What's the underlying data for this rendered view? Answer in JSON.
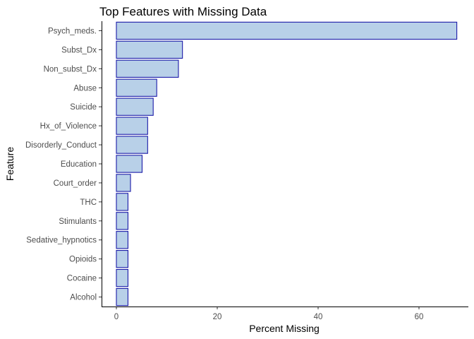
{
  "chart_data": {
    "type": "bar",
    "orientation": "horizontal",
    "title": "Top Features with Missing Data",
    "xlabel": "Percent Missing",
    "ylabel": "Feature",
    "xlim": [
      0,
      70
    ],
    "xticks": [
      0,
      20,
      40,
      60
    ],
    "categories": [
      "Psych_meds.",
      "Subst_Dx",
      "Non_subst_Dx",
      "Abuse",
      "Suicide",
      "Hx_of_Violence",
      "Disorderly_Conduct",
      "Education",
      "Court_order",
      "THC",
      "Stimulants",
      "Sedative_hypnotics",
      "Opioids",
      "Cocaine",
      "Alcohol"
    ],
    "values": [
      67.5,
      13.1,
      12.3,
      8.0,
      7.3,
      6.2,
      6.2,
      5.1,
      2.8,
      2.3,
      2.3,
      2.3,
      2.3,
      2.3,
      2.3
    ],
    "grid": false,
    "legend": "none",
    "colors": {
      "bar_fill": "#b8d0e8",
      "bar_outline": "#1a1aa8"
    }
  }
}
